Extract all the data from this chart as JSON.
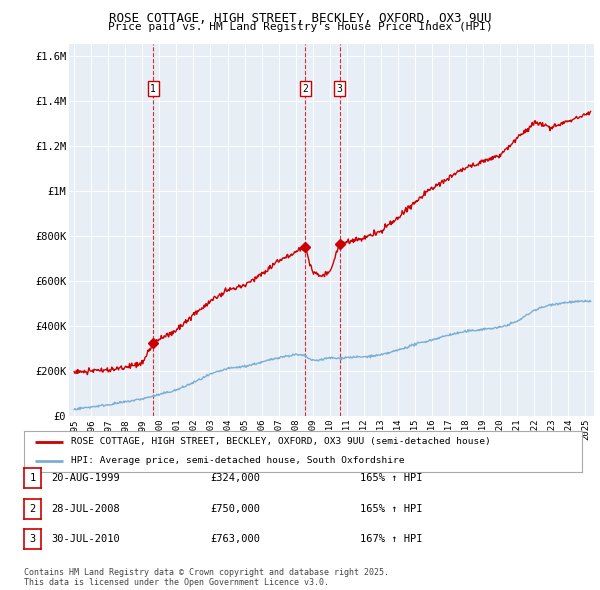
{
  "title": "ROSE COTTAGE, HIGH STREET, BECKLEY, OXFORD, OX3 9UU",
  "subtitle": "Price paid vs. HM Land Registry's House Price Index (HPI)",
  "ylabel_ticks": [
    "£0",
    "£200K",
    "£400K",
    "£600K",
    "£800K",
    "£1M",
    "£1.2M",
    "£1.4M",
    "£1.6M"
  ],
  "ytick_values": [
    0,
    200000,
    400000,
    600000,
    800000,
    1000000,
    1200000,
    1400000,
    1600000
  ],
  "ylim": [
    0,
    1650000
  ],
  "xlim_start": 1994.7,
  "xlim_end": 2025.5,
  "sale_dates": [
    1999.64,
    2008.57,
    2010.58
  ],
  "sale_prices": [
    324000,
    750000,
    763000
  ],
  "sale_labels": [
    "1",
    "2",
    "3"
  ],
  "red_line_color": "#cc0000",
  "blue_line_color": "#7bafd4",
  "plot_bg_color": "#e8eef5",
  "sale_marker_color": "#cc0000",
  "dashed_line_color": "#cc0000",
  "grid_color": "#ffffff",
  "legend_entries": [
    "ROSE COTTAGE, HIGH STREET, BECKLEY, OXFORD, OX3 9UU (semi-detached house)",
    "HPI: Average price, semi-detached house, South Oxfordshire"
  ],
  "table_rows": [
    {
      "label": "1",
      "date": "20-AUG-1999",
      "price": "£324,000",
      "hpi": "165% ↑ HPI"
    },
    {
      "label": "2",
      "date": "28-JUL-2008",
      "price": "£750,000",
      "hpi": "165% ↑ HPI"
    },
    {
      "label": "3",
      "date": "30-JUL-2010",
      "price": "£763,000",
      "hpi": "167% ↑ HPI"
    }
  ],
  "footnote": "Contains HM Land Registry data © Crown copyright and database right 2025.\nThis data is licensed under the Open Government Licence v3.0.",
  "background_color": "#ffffff",
  "hpi_seed_values": [
    [
      1995.0,
      30000
    ],
    [
      1996.0,
      40000
    ],
    [
      1997.0,
      50000
    ],
    [
      1998.0,
      62000
    ],
    [
      1999.0,
      76000
    ],
    [
      2000.0,
      95000
    ],
    [
      2001.0,
      115000
    ],
    [
      2002.0,
      148000
    ],
    [
      2003.0,
      185000
    ],
    [
      2004.0,
      210000
    ],
    [
      2005.0,
      220000
    ],
    [
      2006.0,
      238000
    ],
    [
      2007.0,
      260000
    ],
    [
      2008.0,
      272000
    ],
    [
      2008.5,
      268000
    ],
    [
      2009.0,
      245000
    ],
    [
      2009.5,
      250000
    ],
    [
      2010.0,
      258000
    ],
    [
      2010.5,
      255000
    ],
    [
      2011.0,
      260000
    ],
    [
      2012.0,
      262000
    ],
    [
      2013.0,
      270000
    ],
    [
      2014.0,
      292000
    ],
    [
      2015.0,
      318000
    ],
    [
      2016.0,
      338000
    ],
    [
      2017.0,
      360000
    ],
    [
      2018.0,
      375000
    ],
    [
      2019.0,
      385000
    ],
    [
      2020.0,
      393000
    ],
    [
      2021.0,
      420000
    ],
    [
      2022.0,
      470000
    ],
    [
      2023.0,
      495000
    ],
    [
      2024.0,
      505000
    ],
    [
      2025.3,
      510000
    ]
  ],
  "prop_seed_values": [
    [
      1995.0,
      195000
    ],
    [
      1996.0,
      200000
    ],
    [
      1997.0,
      205000
    ],
    [
      1998.0,
      215000
    ],
    [
      1999.0,
      235000
    ],
    [
      1999.64,
      324000
    ],
    [
      2000.0,
      340000
    ],
    [
      2001.0,
      380000
    ],
    [
      2002.0,
      450000
    ],
    [
      2003.0,
      510000
    ],
    [
      2004.0,
      555000
    ],
    [
      2005.0,
      580000
    ],
    [
      2006.0,
      630000
    ],
    [
      2007.0,
      690000
    ],
    [
      2008.0,
      730000
    ],
    [
      2008.57,
      750000
    ],
    [
      2008.8,
      680000
    ],
    [
      2009.0,
      640000
    ],
    [
      2009.5,
      620000
    ],
    [
      2010.0,
      640000
    ],
    [
      2010.58,
      763000
    ],
    [
      2011.0,
      770000
    ],
    [
      2012.0,
      790000
    ],
    [
      2013.0,
      820000
    ],
    [
      2014.0,
      880000
    ],
    [
      2015.0,
      950000
    ],
    [
      2016.0,
      1010000
    ],
    [
      2017.0,
      1060000
    ],
    [
      2018.0,
      1100000
    ],
    [
      2019.0,
      1130000
    ],
    [
      2020.0,
      1160000
    ],
    [
      2021.0,
      1230000
    ],
    [
      2022.0,
      1300000
    ],
    [
      2023.0,
      1280000
    ],
    [
      2024.0,
      1310000
    ],
    [
      2025.3,
      1350000
    ]
  ]
}
